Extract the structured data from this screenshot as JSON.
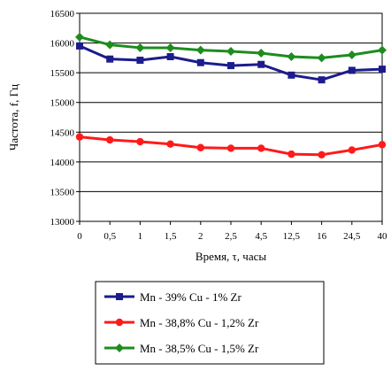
{
  "chart_data": {
    "type": "line",
    "title": "",
    "xlabel": "Время, τ, часы",
    "ylabel": "Частота, f, Гц",
    "categories": [
      "0",
      "0,5",
      "1",
      "1,5",
      "2",
      "2,5",
      "4,5",
      "12,5",
      "16",
      "24,5",
      "40"
    ],
    "ylim": [
      13000,
      16500
    ],
    "yticks": [
      13000,
      13500,
      14000,
      14500,
      15000,
      15500,
      16000,
      16500
    ],
    "grid": true,
    "legend_position": "bottom",
    "series": [
      {
        "name": "Mn - 39% Cu - 1% Zr",
        "color": "#1c1c8c",
        "marker": "square",
        "values": [
          15950,
          15730,
          15710,
          15770,
          15670,
          15620,
          15640,
          15460,
          15380,
          15540,
          15560
        ]
      },
      {
        "name": "Mn - 38,8% Cu - 1,2% Zr",
        "color": "#ff1a1a",
        "marker": "circle",
        "values": [
          14420,
          14370,
          14340,
          14300,
          14240,
          14230,
          14230,
          14130,
          14120,
          14200,
          14290
        ]
      },
      {
        "name": "Mn - 38,5% Cu - 1,5% Zr",
        "color": "#1e8c1e",
        "marker": "diamond",
        "values": [
          16100,
          15970,
          15920,
          15920,
          15880,
          15860,
          15830,
          15770,
          15750,
          15800,
          15880
        ]
      }
    ]
  }
}
